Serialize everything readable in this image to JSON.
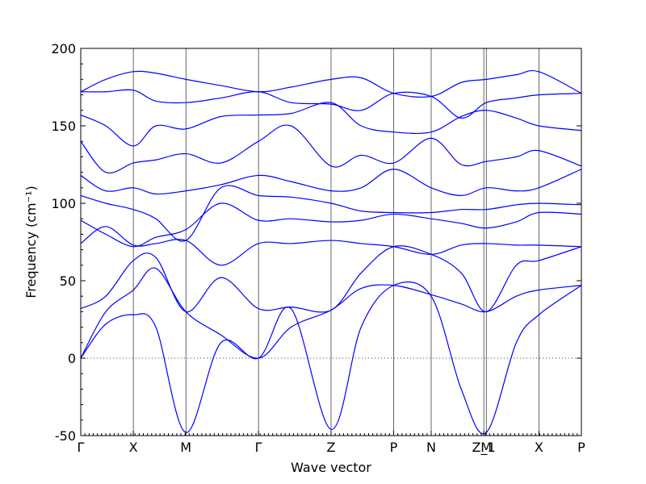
{
  "chart_data": {
    "type": "line",
    "title": "",
    "xlabel": "Wave vector",
    "ylabel": "Frequency (cm⁻¹)",
    "ylim": [
      -50,
      200
    ],
    "yticks": [
      -50,
      0,
      50,
      100,
      150,
      200
    ],
    "grid": false,
    "xticks": [
      {
        "label": "Γ",
        "x": 0.0
      },
      {
        "label": "X",
        "x": 0.105
      },
      {
        "label": "M",
        "x": 0.21
      },
      {
        "label": "Γ",
        "x": 0.355
      },
      {
        "label": "Z",
        "x": 0.5
      },
      {
        "label": "P",
        "x": 0.625
      },
      {
        "label": "N",
        "x": 0.7
      },
      {
        "label": "Z_1",
        "x": 0.805
      },
      {
        "label": "M",
        "x": 0.81
      },
      {
        "label": "X",
        "x": 0.915
      },
      {
        "label": "P",
        "x": 1.0
      }
    ],
    "zero_line": 0,
    "series_color": "#0000ff",
    "series": [
      {
        "name": "",
        "x": [
          0,
          0.05,
          0.105,
          0.15,
          0.21,
          0.28,
          0.355,
          0.42,
          0.5,
          0.56,
          0.625,
          0.7,
          0.76,
          0.81,
          0.87,
          0.915,
          1.0
        ],
        "y": [
          0,
          22,
          28,
          20,
          -48,
          10,
          0,
          32,
          -46,
          20,
          47,
          40,
          -20,
          -48,
          10,
          28,
          47
        ]
      },
      {
        "name": "",
        "x": [
          0,
          0.05,
          0.105,
          0.15,
          0.21,
          0.28,
          0.355,
          0.42,
          0.5,
          0.56,
          0.625,
          0.7,
          0.76,
          0.81,
          0.87,
          0.915,
          1.0
        ],
        "y": [
          0,
          30,
          44,
          58,
          30,
          15,
          0,
          20,
          31,
          45,
          47,
          41,
          35,
          30,
          40,
          44,
          47
        ]
      },
      {
        "name": "",
        "x": [
          0,
          0.05,
          0.105,
          0.15,
          0.21,
          0.28,
          0.355,
          0.42,
          0.5,
          0.56,
          0.625,
          0.7,
          0.76,
          0.81,
          0.87,
          0.915,
          1.0
        ],
        "y": [
          32,
          40,
          63,
          65,
          30,
          52,
          32,
          33,
          31,
          55,
          72,
          67,
          55,
          30,
          60,
          63,
          72
        ]
      },
      {
        "name": "",
        "x": [
          0,
          0.05,
          0.105,
          0.15,
          0.21,
          0.28,
          0.355,
          0.42,
          0.5,
          0.56,
          0.625,
          0.7,
          0.76,
          0.81,
          0.87,
          0.915,
          1.0
        ],
        "y": [
          74,
          85,
          73,
          74,
          76,
          60,
          74,
          74,
          76,
          74,
          72,
          67,
          73,
          74,
          73,
          73,
          72
        ]
      },
      {
        "name": "",
        "x": [
          0,
          0.05,
          0.105,
          0.15,
          0.21,
          0.28,
          0.355,
          0.42,
          0.5,
          0.56,
          0.625,
          0.7,
          0.76,
          0.81,
          0.87,
          0.915,
          1.0
        ],
        "y": [
          89,
          80,
          72,
          78,
          83,
          100,
          89,
          90,
          88,
          89,
          93,
          90,
          87,
          84,
          88,
          94,
          93
        ]
      },
      {
        "name": "",
        "x": [
          0,
          0.05,
          0.105,
          0.15,
          0.21,
          0.28,
          0.355,
          0.42,
          0.5,
          0.56,
          0.625,
          0.7,
          0.76,
          0.81,
          0.87,
          0.915,
          1.0
        ],
        "y": [
          105,
          100,
          96,
          90,
          76,
          110,
          105,
          104,
          100,
          95,
          94,
          94,
          96,
          96,
          99,
          100,
          99
        ]
      },
      {
        "name": "",
        "x": [
          0,
          0.05,
          0.105,
          0.15,
          0.21,
          0.28,
          0.355,
          0.42,
          0.5,
          0.56,
          0.625,
          0.7,
          0.76,
          0.81,
          0.87,
          0.915,
          1.0
        ],
        "y": [
          118,
          108,
          110,
          106,
          108,
          112,
          118,
          114,
          108,
          110,
          122,
          110,
          105,
          110,
          108,
          110,
          122
        ]
      },
      {
        "name": "",
        "x": [
          0,
          0.05,
          0.105,
          0.15,
          0.21,
          0.28,
          0.355,
          0.42,
          0.5,
          0.56,
          0.625,
          0.7,
          0.76,
          0.81,
          0.87,
          0.915,
          1.0
        ],
        "y": [
          140,
          120,
          126,
          128,
          132,
          126,
          140,
          150,
          124,
          131,
          126,
          142,
          125,
          127,
          130,
          134,
          124
        ]
      },
      {
        "name": "",
        "x": [
          0,
          0.05,
          0.105,
          0.15,
          0.21,
          0.28,
          0.355,
          0.42,
          0.5,
          0.56,
          0.625,
          0.7,
          0.76,
          0.81,
          0.87,
          0.915,
          1.0
        ],
        "y": [
          157,
          150,
          137,
          150,
          148,
          156,
          157,
          158,
          165,
          150,
          146,
          146,
          156,
          160,
          155,
          150,
          147
        ]
      },
      {
        "name": "",
        "x": [
          0,
          0.05,
          0.105,
          0.15,
          0.21,
          0.28,
          0.355,
          0.42,
          0.5,
          0.56,
          0.625,
          0.7,
          0.76,
          0.81,
          0.87,
          0.915,
          1.0
        ],
        "y": [
          172,
          172,
          173,
          166,
          165,
          168,
          172,
          165,
          164,
          160,
          171,
          169,
          155,
          165,
          168,
          170,
          171
        ]
      },
      {
        "name": "",
        "x": [
          0,
          0.05,
          0.105,
          0.15,
          0.21,
          0.28,
          0.355,
          0.42,
          0.5,
          0.56,
          0.625,
          0.7,
          0.76,
          0.81,
          0.87,
          0.915,
          1.0
        ],
        "y": [
          172,
          180,
          185,
          184,
          180,
          176,
          172,
          175,
          180,
          181,
          171,
          169,
          178,
          180,
          183,
          185,
          171
        ]
      }
    ]
  }
}
